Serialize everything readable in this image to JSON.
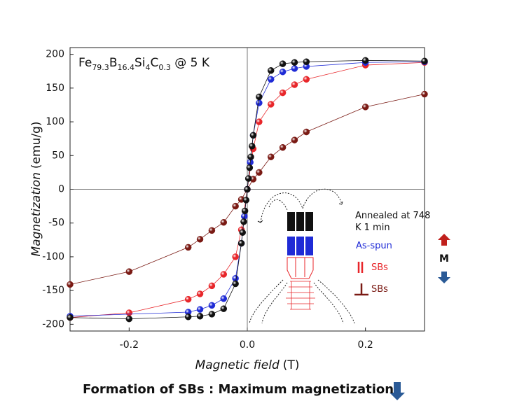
{
  "chart_data": {
    "type": "line",
    "title_parts": [
      {
        "text": "Fe"
      },
      {
        "text": "79.3",
        "sub": true
      },
      {
        "text": "B"
      },
      {
        "text": "16.4",
        "sub": true
      },
      {
        "text": "Si"
      },
      {
        "text": "4",
        "sub": true
      },
      {
        "text": "C"
      },
      {
        "text": "0.3",
        "sub": true
      },
      {
        "text": " @ 5 K"
      }
    ],
    "xlabel": "Magnetic field",
    "xlabel_unit": "(T)",
    "ylabel": "Magnetization",
    "ylabel_unit": "(emu/g)",
    "caption": "Formation of SBs : Maximum magnetization",
    "side_label": "M",
    "xlim": [
      -0.3,
      0.3
    ],
    "ylim": [
      -210,
      210
    ],
    "xticks": [
      -0.2,
      {
        "value": 0,
        "label": "0.0"
      },
      0.2
    ],
    "yticks": [
      -200,
      -150,
      -100,
      -50,
      0,
      50,
      100,
      150,
      200
    ],
    "zero_lines": true,
    "series": [
      {
        "name": "Annealed at 748 K 1 min",
        "color": "#111111",
        "x": [
          -0.3,
          -0.2,
          -0.1,
          -0.08,
          -0.06,
          -0.04,
          -0.02,
          -0.01,
          -0.008,
          -0.006,
          -0.004,
          -0.002,
          0,
          0.002,
          0.004,
          0.006,
          0.008,
          0.01,
          0.02,
          0.04,
          0.06,
          0.08,
          0.1,
          0.2,
          0.3
        ],
        "values": [
          -190,
          -192,
          -189,
          -188,
          -185,
          -177,
          -140,
          -80,
          -64,
          -48,
          -32,
          -16,
          0,
          16,
          32,
          48,
          64,
          80,
          137,
          176,
          186,
          188,
          189,
          191,
          190
        ]
      },
      {
        "name": "As-spun",
        "color": "#1f2bd6",
        "x": [
          -0.3,
          -0.1,
          -0.08,
          -0.06,
          -0.04,
          -0.02,
          -0.01,
          -0.005,
          0,
          0.005,
          0.01,
          0.02,
          0.04,
          0.06,
          0.08,
          0.1,
          0.2,
          0.3
        ],
        "values": [
          -188,
          -182,
          -178,
          -172,
          -162,
          -132,
          -80,
          -40,
          0,
          40,
          80,
          128,
          163,
          174,
          179,
          182,
          188,
          189
        ]
      },
      {
        "name": "SBs",
        "color": "#e8262a",
        "x": [
          -0.3,
          -0.2,
          -0.1,
          -0.08,
          -0.06,
          -0.04,
          -0.02,
          -0.01,
          0,
          0.01,
          0.02,
          0.04,
          0.06,
          0.08,
          0.1,
          0.2,
          0.3
        ],
        "values": [
          -190,
          -183,
          -163,
          -155,
          -143,
          -126,
          -100,
          -60,
          0,
          60,
          100,
          126,
          143,
          155,
          163,
          184,
          188
        ]
      },
      {
        "name": "SBs",
        "color": "#7a1a14",
        "x": [
          -0.3,
          -0.2,
          -0.1,
          -0.08,
          -0.06,
          -0.04,
          -0.02,
          -0.01,
          0,
          0.01,
          0.02,
          0.04,
          0.06,
          0.08,
          0.1,
          0.2,
          0.3
        ],
        "values": [
          -141,
          -122,
          -86,
          -74,
          -61,
          -49,
          -25,
          -15,
          0,
          15,
          25,
          48,
          62,
          73,
          85,
          122,
          141
        ]
      }
    ]
  }
}
